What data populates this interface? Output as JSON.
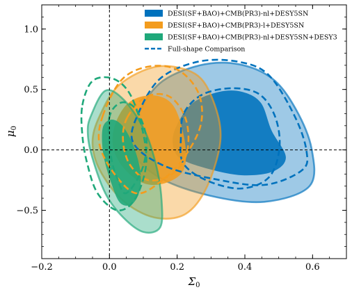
{
  "chart_data": {
    "type": "contour",
    "xlabel": "Σ0",
    "ylabel": "μ0",
    "xlim": [
      -0.2,
      0.7
    ],
    "ylim": [
      -0.9,
      1.2
    ],
    "x_ticks": [
      -0.2,
      0.0,
      0.2,
      0.4,
      0.6
    ],
    "x_tick_labels": [
      "−0.2",
      "0.0",
      "0.2",
      "0.4",
      "0.6"
    ],
    "y_ticks": [
      -0.5,
      0.0,
      0.5,
      1.0
    ],
    "y_tick_labels": [
      "−0.5",
      "0.0",
      "0.5",
      "1.0"
    ],
    "reference_lines": {
      "x": 0.0,
      "y": 0.0,
      "style": "dashed",
      "color": "#000000"
    },
    "legend_position": "top-right",
    "series": [
      {
        "name": "DESI(SF+BAO)+CMB(PR3)-nl+DESY5SN",
        "color": "#0072bd",
        "style": "filled",
        "center": [
          0.36,
          0.12
        ],
        "contour_68": [
          [
            0.2,
            0.21
          ],
          [
            0.247,
            0.39
          ],
          [
            0.324,
            0.48
          ],
          [
            0.392,
            0.48
          ],
          [
            0.447,
            0.39
          ],
          [
            0.479,
            0.16
          ],
          [
            0.521,
            -0.06
          ],
          [
            0.482,
            -0.18
          ],
          [
            0.393,
            -0.21
          ],
          [
            0.296,
            -0.16
          ],
          [
            0.209,
            -0.07
          ],
          [
            0.187,
            0.06
          ]
        ],
        "contour_95": [
          [
            0.081,
            0.26
          ],
          [
            0.148,
            0.55
          ],
          [
            0.267,
            0.7
          ],
          [
            0.38,
            0.71
          ],
          [
            0.481,
            0.59
          ],
          [
            0.55,
            0.34
          ],
          [
            0.597,
            0.01
          ],
          [
            0.591,
            -0.3
          ],
          [
            0.458,
            -0.43
          ],
          [
            0.298,
            -0.38
          ],
          [
            0.148,
            -0.23
          ],
          [
            0.066,
            0.0
          ]
        ]
      },
      {
        "name": "DESI(SF+BAO)+CMB(PR3)-l+DESY5SN",
        "color": "#f39c1e",
        "style": "filled",
        "center": [
          0.14,
          0.08
        ],
        "contour_68": [
          [
            0.018,
            0.22
          ],
          [
            0.061,
            0.4
          ],
          [
            0.133,
            0.45
          ],
          [
            0.19,
            0.36
          ],
          [
            0.222,
            0.08
          ],
          [
            0.22,
            -0.16
          ],
          [
            0.17,
            -0.27
          ],
          [
            0.105,
            -0.28
          ],
          [
            0.045,
            -0.16
          ],
          [
            0.011,
            0.02
          ]
        ],
        "contour_95": [
          [
            -0.029,
            0.28
          ],
          [
            0.03,
            0.54
          ],
          [
            0.142,
            0.69
          ],
          [
            0.253,
            0.63
          ],
          [
            0.306,
            0.41
          ],
          [
            0.328,
            0.09
          ],
          [
            0.289,
            -0.3
          ],
          [
            0.225,
            -0.53
          ],
          [
            0.133,
            -0.56
          ],
          [
            0.04,
            -0.42
          ],
          [
            -0.028,
            -0.17
          ],
          [
            -0.05,
            0.06
          ]
        ]
      },
      {
        "name": "DESI(SF+BAO)+CMB(PR3)-nl+DESY5SN+DESY3",
        "color": "#1fa87a",
        "style": "filled",
        "center": [
          0.02,
          -0.05
        ],
        "contour_68": [
          [
            -0.02,
            0.18
          ],
          [
            0.005,
            0.25
          ],
          [
            0.038,
            0.2
          ],
          [
            0.07,
            0.04
          ],
          [
            0.091,
            -0.17
          ],
          [
            0.089,
            -0.34
          ],
          [
            0.066,
            -0.45
          ],
          [
            0.032,
            -0.44
          ],
          [
            0.006,
            -0.28
          ],
          [
            -0.018,
            -0.04
          ]
        ],
        "contour_95": [
          [
            -0.055,
            0.28
          ],
          [
            -0.012,
            0.49
          ],
          [
            0.044,
            0.41
          ],
          [
            0.104,
            0.16
          ],
          [
            0.139,
            -0.14
          ],
          [
            0.154,
            -0.42
          ],
          [
            0.15,
            -0.64
          ],
          [
            0.101,
            -0.68
          ],
          [
            0.041,
            -0.56
          ],
          [
            -0.012,
            -0.36
          ],
          [
            -0.052,
            -0.05
          ],
          [
            -0.064,
            0.14
          ]
        ]
      },
      {
        "name": "Full-shape Comparison",
        "color_note": "dashed outlines in the color of each series",
        "style": "dashed",
        "contours": [
          {
            "color": "#0072bd",
            "points": [
              [
                0.221,
                0.31
              ],
              [
                0.276,
                0.46
              ],
              [
                0.364,
                0.51
              ],
              [
                0.443,
                0.46
              ],
              [
                0.49,
                0.27
              ],
              [
                0.502,
                0.01
              ],
              [
                0.47,
                -0.23
              ],
              [
                0.387,
                -0.32
              ],
              [
                0.285,
                -0.25
              ],
              [
                0.218,
                -0.11
              ],
              [
                0.211,
                0.1
              ]
            ]
          },
          {
            "color": "#0072bd",
            "points": [
              [
                0.085,
                0.3
              ],
              [
                0.15,
                0.59
              ],
              [
                0.262,
                0.73
              ],
              [
                0.38,
                0.73
              ],
              [
                0.47,
                0.62
              ],
              [
                0.547,
                0.28
              ],
              [
                0.582,
                -0.01
              ],
              [
                0.568,
                -0.17
              ],
              [
                0.457,
                -0.29
              ],
              [
                0.308,
                -0.24
              ],
              [
                0.16,
                -0.13
              ],
              [
                0.07,
                0.06
              ]
            ]
          },
          {
            "color": "#f39c1e",
            "points": [
              [
                0.053,
                0.27
              ],
              [
                0.109,
                0.44
              ],
              [
                0.178,
                0.44
              ],
              [
                0.226,
                0.25
              ],
              [
                0.229,
                -0.02
              ],
              [
                0.185,
                -0.2
              ],
              [
                0.114,
                -0.25
              ],
              [
                0.06,
                -0.12
              ],
              [
                0.04,
                0.08
              ]
            ]
          },
          {
            "color": "#f39c1e",
            "points": [
              [
                -0.02,
                0.28
              ],
              [
                0.036,
                0.58
              ],
              [
                0.117,
                0.69
              ],
              [
                0.203,
                0.66
              ],
              [
                0.263,
                0.47
              ],
              [
                0.27,
                0.21
              ],
              [
                0.221,
                -0.06
              ],
              [
                0.152,
                -0.26
              ],
              [
                0.08,
                -0.36
              ],
              [
                0.015,
                -0.2
              ],
              [
                -0.029,
                0.04
              ]
            ]
          },
          {
            "color": "#1fa87a",
            "points": [
              [
                -0.001,
                0.26
              ],
              [
                0.033,
                0.39
              ],
              [
                0.077,
                0.34
              ],
              [
                0.108,
                0.12
              ],
              [
                0.104,
                -0.09
              ],
              [
                0.079,
                -0.26
              ],
              [
                0.046,
                -0.36
              ],
              [
                0.025,
                -0.25
              ],
              [
                0.005,
                -0.06
              ]
            ]
          },
          {
            "color": "#1fa87a",
            "points": [
              [
                -0.08,
                0.37
              ],
              [
                -0.05,
                0.57
              ],
              [
                0.01,
                0.59
              ],
              [
                0.061,
                0.46
              ],
              [
                0.098,
                0.16
              ],
              [
                0.108,
                -0.13
              ],
              [
                0.075,
                -0.41
              ],
              [
                0.023,
                -0.5
              ],
              [
                -0.035,
                -0.36
              ],
              [
                -0.065,
                -0.12
              ],
              [
                -0.08,
                0.12
              ]
            ]
          }
        ]
      }
    ]
  }
}
